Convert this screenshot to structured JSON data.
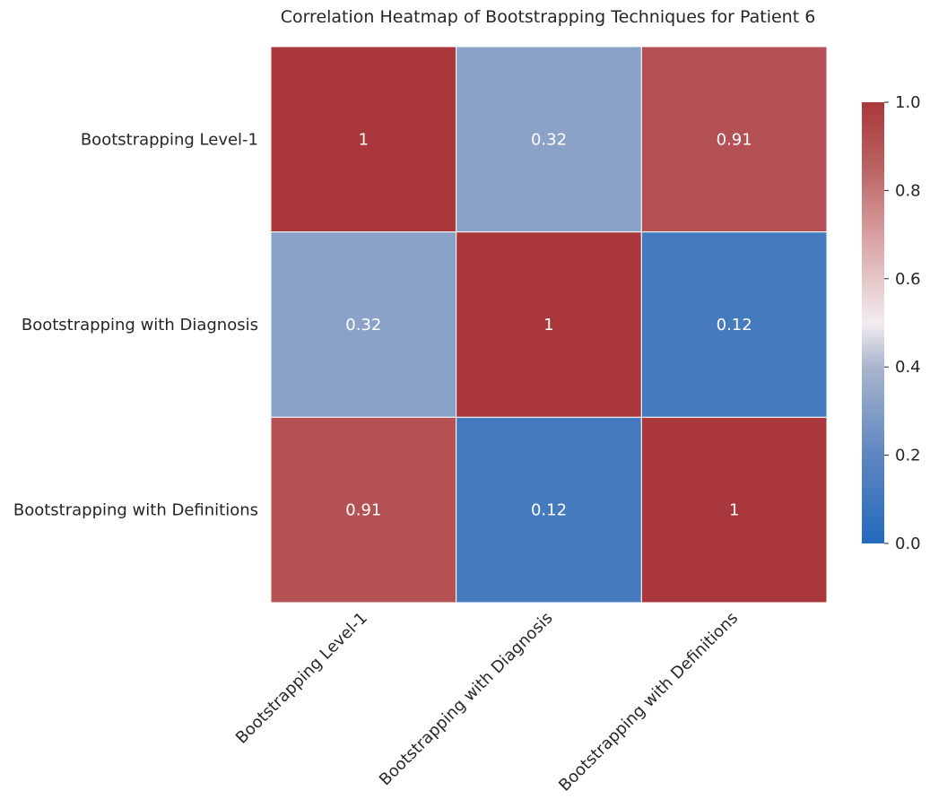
{
  "chart_data": {
    "type": "heatmap",
    "title": "Correlation Heatmap of Bootstrapping Techniques for Patient 6",
    "rows": [
      "Bootstrapping Level-1",
      "Bootstrapping with Diagnosis",
      "Bootstrapping with Definitions"
    ],
    "columns": [
      "Bootstrapping Level-1",
      "Bootstrapping with Diagnosis",
      "Bootstrapping with Definitions"
    ],
    "values": [
      [
        1,
        0.32,
        0.91
      ],
      [
        0.32,
        1,
        0.12
      ],
      [
        0.91,
        0.12,
        1
      ]
    ],
    "annotations": [
      [
        "1",
        "0.32",
        "0.91"
      ],
      [
        "0.32",
        "1",
        "0.12"
      ],
      [
        "0.91",
        "0.12",
        "1"
      ]
    ],
    "colorbar": {
      "range": [
        0.0,
        1.0
      ],
      "ticks": [
        "0.0",
        "0.2",
        "0.4",
        "0.6",
        "0.8",
        "1.0"
      ],
      "colormap": "vlag",
      "stops": [
        {
          "v": 0.0,
          "c": "#2369bd"
        },
        {
          "v": 0.2,
          "c": "#5e86c1"
        },
        {
          "v": 0.4,
          "c": "#a9b5cd"
        },
        {
          "v": 0.5,
          "c": "#f2ecef"
        },
        {
          "v": 0.7,
          "c": "#d89fa0"
        },
        {
          "v": 0.85,
          "c": "#bb6364"
        },
        {
          "v": 1.0,
          "c": "#a9373b"
        }
      ],
      "placement": "right"
    },
    "grid_lines_color": "#ffffff"
  }
}
